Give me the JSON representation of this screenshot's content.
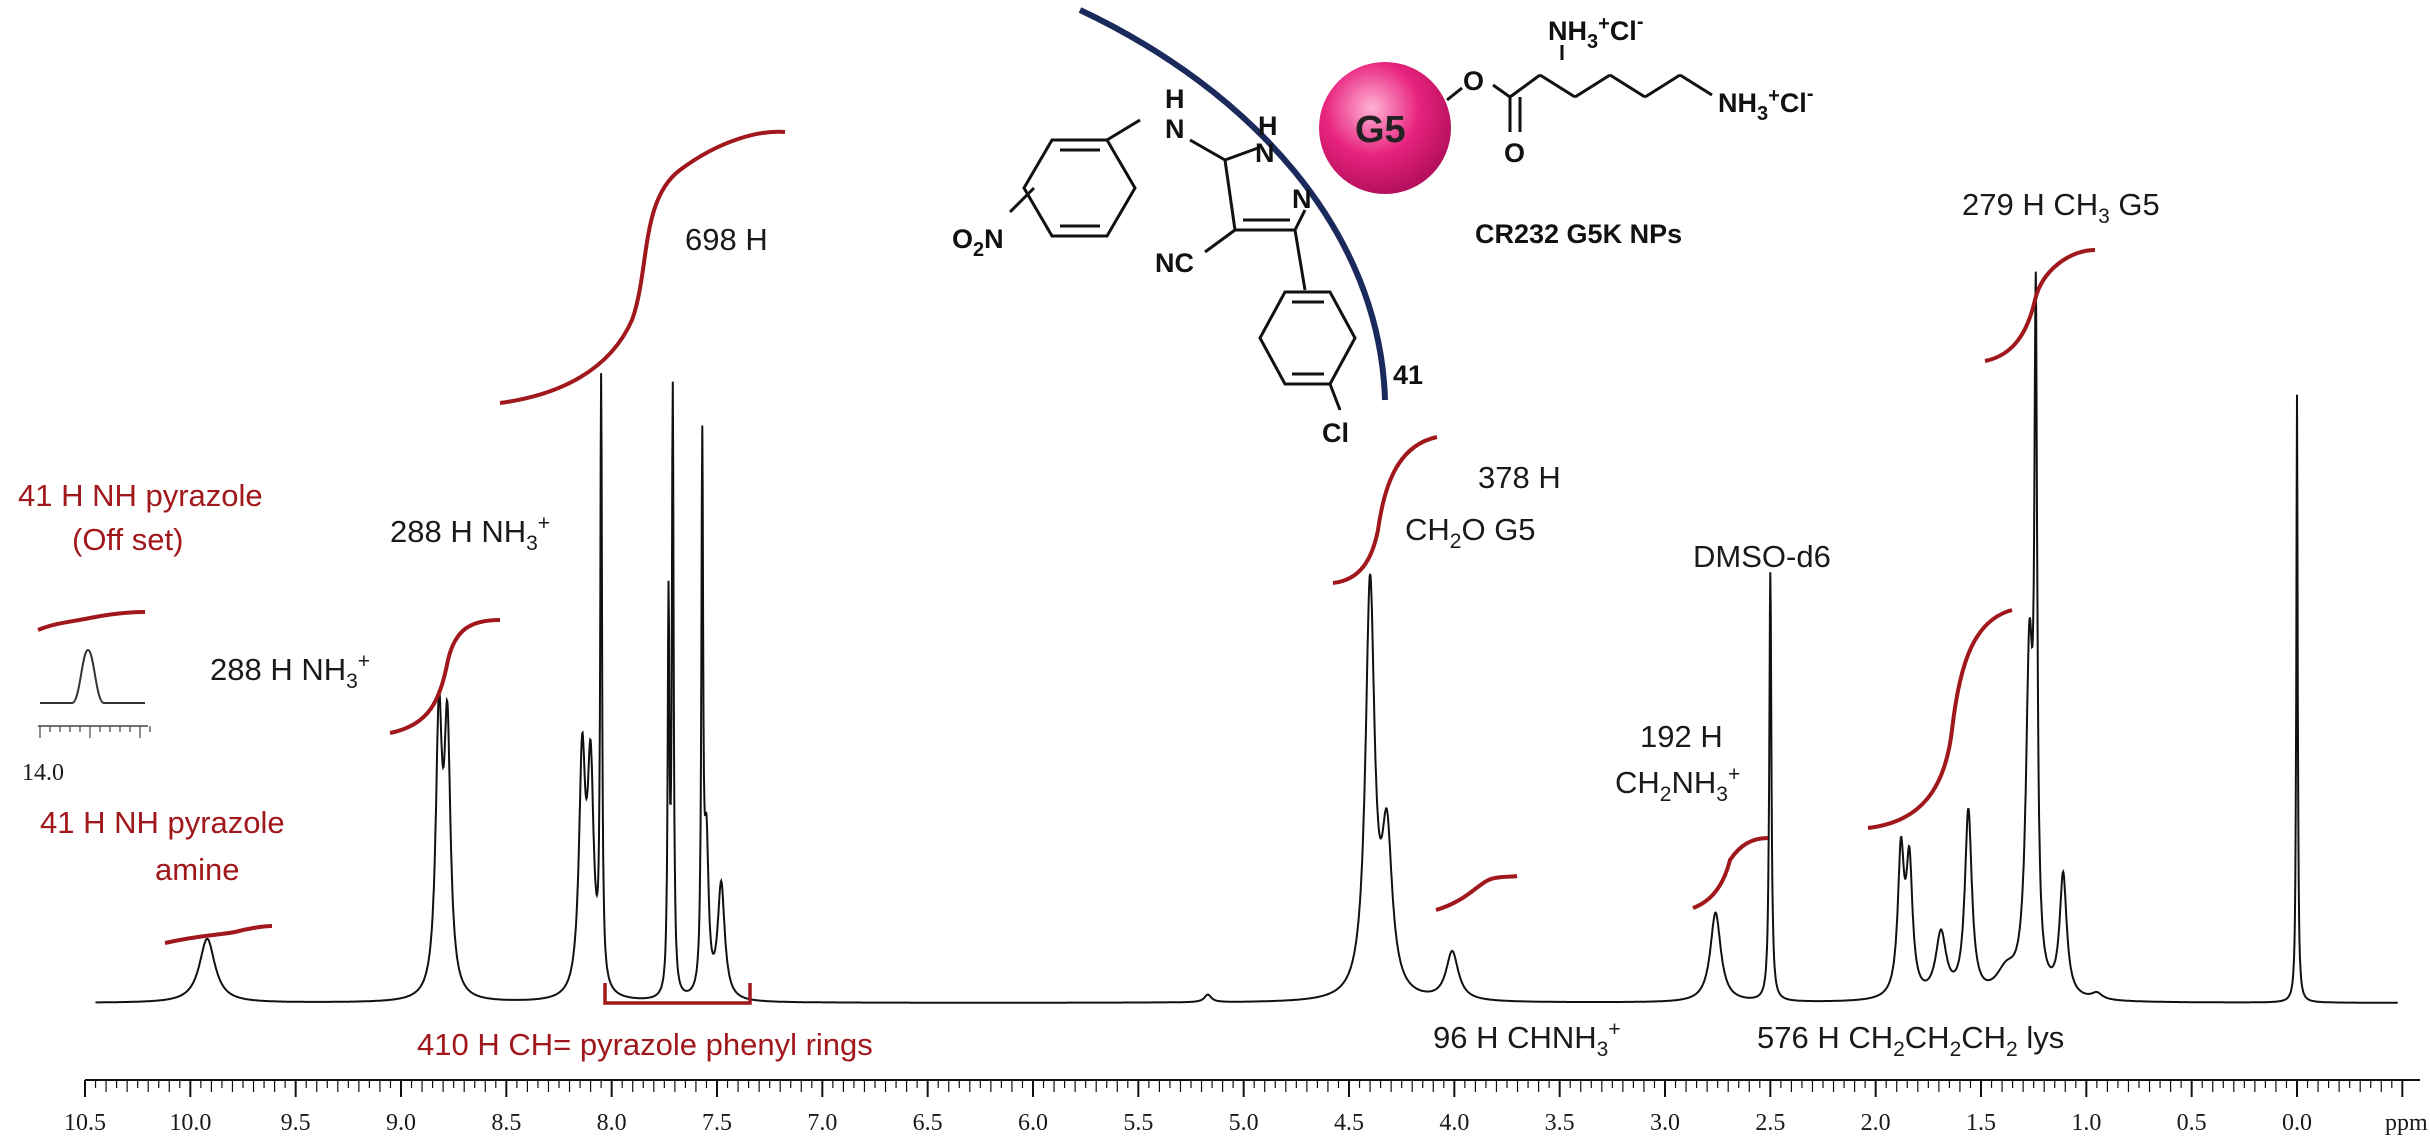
{
  "chart_data": {
    "type": "line",
    "xlabel": "ppm",
    "x_reversed": true,
    "xlim": [
      10.5,
      -0.5
    ],
    "ticks": [
      "10.5",
      "10.0",
      "9.5",
      "9.0",
      "8.5",
      "8.0",
      "7.5",
      "7.0",
      "6.5",
      "6.0",
      "5.5",
      "5.0",
      "4.5",
      "4.0",
      "3.5",
      "3.0",
      "2.5",
      "2.0",
      "1.5",
      "1.0",
      "0.5",
      "0.0"
    ],
    "grid": false,
    "peaks": [
      {
        "ppm": 9.92,
        "intensity": 0.1,
        "width": 0.045
      },
      {
        "ppm": 8.82,
        "intensity": 0.42,
        "width": 0.018
      },
      {
        "ppm": 8.78,
        "intensity": 0.4,
        "width": 0.018
      },
      {
        "ppm": 8.14,
        "intensity": 0.36,
        "width": 0.018
      },
      {
        "ppm": 8.1,
        "intensity": 0.34,
        "width": 0.018
      },
      {
        "ppm": 8.05,
        "intensity": 0.93,
        "width": 0.005
      },
      {
        "ppm": 7.73,
        "intensity": 0.6,
        "width": 0.005
      },
      {
        "ppm": 7.71,
        "intensity": 0.93,
        "width": 0.005
      },
      {
        "ppm": 7.57,
        "intensity": 0.83,
        "width": 0.005
      },
      {
        "ppm": 7.55,
        "intensity": 0.23,
        "width": 0.012
      },
      {
        "ppm": 7.48,
        "intensity": 0.18,
        "width": 0.02
      },
      {
        "ppm": 5.17,
        "intensity": 0.012,
        "width": 0.02
      },
      {
        "ppm": 4.4,
        "intensity": 0.64,
        "width": 0.026
      },
      {
        "ppm": 4.32,
        "intensity": 0.24,
        "width": 0.03
      },
      {
        "ppm": 4.01,
        "intensity": 0.076,
        "width": 0.035
      },
      {
        "ppm": 2.76,
        "intensity": 0.14,
        "width": 0.03
      },
      {
        "ppm": 2.5,
        "intensity": 0.67,
        "width": 0.006
      },
      {
        "ppm": 1.88,
        "intensity": 0.22,
        "width": 0.018
      },
      {
        "ppm": 1.84,
        "intensity": 0.2,
        "width": 0.018
      },
      {
        "ppm": 1.69,
        "intensity": 0.1,
        "width": 0.03
      },
      {
        "ppm": 1.56,
        "intensity": 0.29,
        "width": 0.02
      },
      {
        "ppm": 1.38,
        "intensity": 0.04,
        "width": 0.06
      },
      {
        "ppm": 1.27,
        "intensity": 0.52,
        "width": 0.02
      },
      {
        "ppm": 1.24,
        "intensity": 0.97,
        "width": 0.008
      },
      {
        "ppm": 1.11,
        "intensity": 0.19,
        "width": 0.02
      },
      {
        "ppm": 0.95,
        "intensity": 0.01,
        "width": 0.03
      },
      {
        "ppm": 0.0,
        "intensity": 0.95,
        "width": 0.004
      }
    ],
    "inset": {
      "tick_label": "14.0"
    },
    "annotations": {
      "nh_offset_1": "41 H NH pyrazole",
      "nh_offset_2": "(Off set)",
      "nh_amine_1": "41 H NH pyrazole",
      "nh_amine_2": "amine",
      "nh3_a_prefix": "288 H  NH",
      "nh3_b_prefix": "288 H  NH",
      "sub_3": "3",
      "sup_plus": "+",
      "h698": "698 H",
      "h410": "410 H CH= pyrazole phenyl rings",
      "h378_1": "378 H",
      "h378_2a": "CH",
      "h378_2b": "O  G5",
      "sub_2": "2",
      "dmso": "DMSO-d6",
      "h192_1": "192 H",
      "h192_2a": "CH",
      "h192_2b": "NH",
      "h96a": "96 H  CHNH",
      "h576a": "576 H  CH",
      "h576b": "CH",
      "h576c": "CH",
      "h576d": " lys",
      "h279a": "279 H  CH",
      "h279b": " G5"
    },
    "structure": {
      "g5": "G5",
      "np_label": "CR232 G5K NPs",
      "count": "41",
      "nh3cl": "NH",
      "cl_minus": "Cl",
      "minus": "-",
      "o": "O",
      "h": "H",
      "nh": "N",
      "n": "N",
      "cn": "NC",
      "cl": "Cl",
      "o2n_a": "O",
      "o2n_b": "N"
    },
    "colors": {
      "spectrum": "#111111",
      "integral": "#a0171c",
      "label_red": "#a0171c",
      "g5_sphere": "#e8237e",
      "arc": "#1b2a5c"
    }
  }
}
